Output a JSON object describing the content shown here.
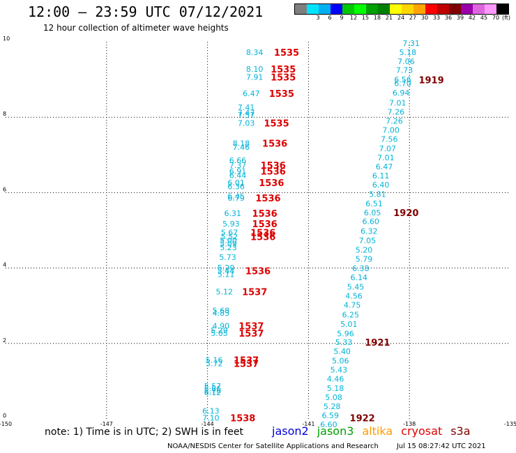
{
  "header": {
    "title": "12:00 – 23:59 UTC 07/12/2021",
    "subtitle": "12 hour collection of altimeter wave heights"
  },
  "colorbar": {
    "unit_label": "(ft)",
    "swatches": [
      {
        "color": "#7f7f7f",
        "label": ""
      },
      {
        "color": "#00e5ff",
        "label": "3"
      },
      {
        "color": "#00b0f0",
        "label": "6"
      },
      {
        "color": "#0000ff",
        "label": "9"
      },
      {
        "color": "#00c800",
        "label": "12"
      },
      {
        "color": "#00ff00",
        "label": "15"
      },
      {
        "color": "#00a000",
        "label": "18"
      },
      {
        "color": "#008000",
        "label": "21"
      },
      {
        "color": "#ffff00",
        "label": "24"
      },
      {
        "color": "#ffd700",
        "label": "27"
      },
      {
        "color": "#ffa500",
        "label": "30"
      },
      {
        "color": "#ff0000",
        "label": "33"
      },
      {
        "color": "#c00000",
        "label": "36"
      },
      {
        "color": "#800000",
        "label": "39"
      },
      {
        "color": "#9900aa",
        "label": "42"
      },
      {
        "color": "#dd66dd",
        "label": "45"
      },
      {
        "color": "#ff99ff",
        "label": "70"
      },
      {
        "color": "#000000",
        "label": ""
      }
    ]
  },
  "footer": {
    "note": "note:  1) Time is in UTC; 2) SWH is in feet",
    "legend": [
      {
        "name": "jason2",
        "color": "#0000dd"
      },
      {
        "name": "jason3",
        "color": "#00a000"
      },
      {
        "name": "altika",
        "color": "#ff9900"
      },
      {
        "name": "cryosat",
        "color": "#dd0000"
      },
      {
        "name": "s3a",
        "color": "#800000"
      }
    ],
    "credit": "NOAA/NESDIS Center for Satellite Applications and Research",
    "generated": "Jul 15 08:27:42 UTC 2021"
  },
  "chart_data": {
    "type": "scatter",
    "title": "12:00 – 23:59 UTC 07/12/2021",
    "subtitle": "12 hour collection of altimeter wave heights",
    "xlim": [
      -150,
      -135
    ],
    "ylim": [
      0,
      10
    ],
    "x_ticks": [
      -150,
      -147,
      -144,
      -141,
      -138,
      -135
    ],
    "y_ticks": [
      0,
      2,
      4,
      6,
      8,
      10
    ],
    "grid": true,
    "wave_color": "#00b4d8",
    "series": [
      {
        "name": "track west",
        "values": [
          {
            "x": -142.6,
            "y": 9.72,
            "v": "8.34"
          },
          {
            "x": -142.6,
            "y": 9.28,
            "v": "8.10"
          },
          {
            "x": -142.6,
            "y": 9.07,
            "v": "7.91"
          },
          {
            "x": -142.7,
            "y": 8.63,
            "v": "6.47"
          },
          {
            "x": -142.85,
            "y": 8.26,
            "v": "7.41"
          },
          {
            "x": -142.85,
            "y": 8.12,
            "v": "7.47"
          },
          {
            "x": -142.85,
            "y": 8.06,
            "v": "7.57"
          },
          {
            "x": -142.85,
            "y": 7.85,
            "v": "7.03"
          },
          {
            "x": -143.0,
            "y": 7.31,
            "v": "8.18"
          },
          {
            "x": -143.0,
            "y": 7.21,
            "v": "7.46"
          },
          {
            "x": -143.1,
            "y": 6.86,
            "v": "6.66"
          },
          {
            "x": -143.1,
            "y": 6.73,
            "v": "7.37"
          },
          {
            "x": -143.1,
            "y": 6.57,
            "v": "6.91"
          },
          {
            "x": -143.1,
            "y": 6.46,
            "v": "6.44"
          },
          {
            "x": -143.15,
            "y": 6.27,
            "v": "6.01"
          },
          {
            "x": -143.15,
            "y": 6.16,
            "v": "6.36"
          },
          {
            "x": -143.15,
            "y": 5.91,
            "v": "6.45"
          },
          {
            "x": -143.15,
            "y": 5.86,
            "v": "6.79"
          },
          {
            "x": -143.25,
            "y": 5.45,
            "v": "6.31"
          },
          {
            "x": -143.3,
            "y": 5.18,
            "v": "5.93"
          },
          {
            "x": -143.35,
            "y": 4.94,
            "v": "5.67"
          },
          {
            "x": -143.35,
            "y": 4.83,
            "v": "5.52"
          },
          {
            "x": -143.38,
            "y": 4.73,
            "v": "5.00"
          },
          {
            "x": -143.38,
            "y": 4.65,
            "v": "5.09"
          },
          {
            "x": -143.38,
            "y": 4.55,
            "v": "5.23"
          },
          {
            "x": -143.4,
            "y": 4.29,
            "v": "5.73"
          },
          {
            "x": -143.45,
            "y": 4.01,
            "v": "5.20"
          },
          {
            "x": -143.45,
            "y": 3.93,
            "v": "5.44"
          },
          {
            "x": -143.45,
            "y": 3.84,
            "v": "5.11"
          },
          {
            "x": -143.5,
            "y": 3.37,
            "v": "5.12"
          },
          {
            "x": -143.6,
            "y": 2.87,
            "v": "5.68"
          },
          {
            "x": -143.6,
            "y": 2.81,
            "v": "4.83"
          },
          {
            "x": -143.6,
            "y": 2.47,
            "v": "4.90"
          },
          {
            "x": -143.65,
            "y": 2.35,
            "v": "5.29"
          },
          {
            "x": -143.65,
            "y": 2.27,
            "v": "5.05"
          },
          {
            "x": -143.8,
            "y": 1.56,
            "v": "5.16"
          },
          {
            "x": -143.8,
            "y": 1.47,
            "v": "5.72"
          },
          {
            "x": -143.85,
            "y": 0.87,
            "v": "5.57"
          },
          {
            "x": -143.85,
            "y": 0.8,
            "v": "5.86"
          },
          {
            "x": -143.85,
            "y": 0.75,
            "v": "5.76"
          },
          {
            "x": -143.85,
            "y": 0.7,
            "v": "6.12"
          },
          {
            "x": -143.9,
            "y": 0.21,
            "v": "6.13"
          },
          {
            "x": -143.9,
            "y": 0.03,
            "v": "7.10"
          }
        ]
      },
      {
        "name": "track east",
        "values": [
          {
            "x": -137.95,
            "y": 9.96,
            "v": "7.31"
          },
          {
            "x": -138.05,
            "y": 9.72,
            "v": "5.18"
          },
          {
            "x": -138.1,
            "y": 9.48,
            "v": "7.06"
          },
          {
            "x": -138.15,
            "y": 9.25,
            "v": "7.73"
          },
          {
            "x": -138.2,
            "y": 9.0,
            "v": "6.56"
          },
          {
            "x": -138.2,
            "y": 8.9,
            "v": "6.70"
          },
          {
            "x": -138.25,
            "y": 8.65,
            "v": "6.94"
          },
          {
            "x": -138.35,
            "y": 8.38,
            "v": "7.01"
          },
          {
            "x": -138.4,
            "y": 8.14,
            "v": "7.26"
          },
          {
            "x": -138.45,
            "y": 7.9,
            "v": "7.26"
          },
          {
            "x": -138.55,
            "y": 7.66,
            "v": "7.00"
          },
          {
            "x": -138.6,
            "y": 7.42,
            "v": "7.56"
          },
          {
            "x": -138.65,
            "y": 7.17,
            "v": "7.07"
          },
          {
            "x": -138.7,
            "y": 6.93,
            "v": "7.01"
          },
          {
            "x": -138.75,
            "y": 6.69,
            "v": "6.47"
          },
          {
            "x": -138.85,
            "y": 6.45,
            "v": "6.11"
          },
          {
            "x": -138.85,
            "y": 6.21,
            "v": "6.40"
          },
          {
            "x": -138.95,
            "y": 5.96,
            "v": "5.81"
          },
          {
            "x": -139.05,
            "y": 5.71,
            "v": "6.51"
          },
          {
            "x": -139.1,
            "y": 5.47,
            "v": "6.05"
          },
          {
            "x": -139.15,
            "y": 5.24,
            "v": "6.60"
          },
          {
            "x": -139.2,
            "y": 4.98,
            "v": "6.32"
          },
          {
            "x": -139.25,
            "y": 4.73,
            "v": "7.05"
          },
          {
            "x": -139.35,
            "y": 4.48,
            "v": "5.20"
          },
          {
            "x": -139.35,
            "y": 4.24,
            "v": "5.79"
          },
          {
            "x": -139.45,
            "y": 3.99,
            "v": "6.38"
          },
          {
            "x": -139.5,
            "y": 3.75,
            "v": "6.14"
          },
          {
            "x": -139.6,
            "y": 3.5,
            "v": "5.45"
          },
          {
            "x": -139.65,
            "y": 3.26,
            "v": "4.56"
          },
          {
            "x": -139.7,
            "y": 3.02,
            "v": "4.75"
          },
          {
            "x": -139.75,
            "y": 2.76,
            "v": "6.25"
          },
          {
            "x": -139.8,
            "y": 2.51,
            "v": "5.01"
          },
          {
            "x": -139.9,
            "y": 2.26,
            "v": "5.96"
          },
          {
            "x": -139.95,
            "y": 2.03,
            "v": "5.33"
          },
          {
            "x": -140.0,
            "y": 1.79,
            "v": "5.40"
          },
          {
            "x": -140.05,
            "y": 1.54,
            "v": "5.06"
          },
          {
            "x": -140.1,
            "y": 1.3,
            "v": "5.43"
          },
          {
            "x": -140.2,
            "y": 1.06,
            "v": "4.46"
          },
          {
            "x": -140.2,
            "y": 0.81,
            "v": "5.18"
          },
          {
            "x": -140.25,
            "y": 0.57,
            "v": "5.08"
          },
          {
            "x": -140.3,
            "y": 0.33,
            "v": "5.28"
          },
          {
            "x": -140.35,
            "y": 0.09,
            "v": "6.59"
          },
          {
            "x": -140.4,
            "y": -0.15,
            "v": "6.60"
          }
        ]
      }
    ],
    "annotations": [
      {
        "x": -141.65,
        "y": 9.72,
        "text": "1535",
        "color": "#dd0000"
      },
      {
        "x": -141.75,
        "y": 9.28,
        "text": "1535",
        "color": "#dd0000"
      },
      {
        "x": -141.75,
        "y": 9.07,
        "text": "1535",
        "color": "#dd0000"
      },
      {
        "x": -141.8,
        "y": 8.63,
        "text": "1535",
        "color": "#dd0000"
      },
      {
        "x": -141.95,
        "y": 7.85,
        "text": "1535",
        "color": "#dd0000"
      },
      {
        "x": -142.0,
        "y": 7.31,
        "text": "1536",
        "color": "#dd0000"
      },
      {
        "x": -142.05,
        "y": 6.73,
        "text": "1536",
        "color": "#dd0000"
      },
      {
        "x": -142.05,
        "y": 6.57,
        "text": "1536",
        "color": "#dd0000"
      },
      {
        "x": -142.1,
        "y": 6.27,
        "text": "1536",
        "color": "#dd0000"
      },
      {
        "x": -142.2,
        "y": 5.86,
        "text": "1536",
        "color": "#dd0000"
      },
      {
        "x": -142.3,
        "y": 5.45,
        "text": "1536",
        "color": "#dd0000"
      },
      {
        "x": -142.3,
        "y": 5.18,
        "text": "1536",
        "color": "#dd0000"
      },
      {
        "x": -142.35,
        "y": 4.94,
        "text": "1536",
        "color": "#dd0000"
      },
      {
        "x": -142.35,
        "y": 4.83,
        "text": "1536",
        "color": "#dd0000"
      },
      {
        "x": -142.5,
        "y": 3.93,
        "text": "1536",
        "color": "#dd0000"
      },
      {
        "x": -142.6,
        "y": 3.37,
        "text": "1537",
        "color": "#dd0000"
      },
      {
        "x": -142.7,
        "y": 2.47,
        "text": "1537",
        "color": "#dd0000"
      },
      {
        "x": -142.7,
        "y": 2.27,
        "text": "1537",
        "color": "#dd0000"
      },
      {
        "x": -142.85,
        "y": 1.56,
        "text": "1537",
        "color": "#dd0000"
      },
      {
        "x": -142.85,
        "y": 1.47,
        "text": "1537",
        "color": "#dd0000"
      },
      {
        "x": -142.95,
        "y": 0.03,
        "text": "1538",
        "color": "#dd0000"
      },
      {
        "x": -137.35,
        "y": 8.99,
        "text": "1919",
        "color": "#800000"
      },
      {
        "x": -138.1,
        "y": 5.47,
        "text": "1920",
        "color": "#800000"
      },
      {
        "x": -138.95,
        "y": 2.03,
        "text": "1921",
        "color": "#800000"
      },
      {
        "x": -139.4,
        "y": 0.03,
        "text": "1922",
        "color": "#800000"
      }
    ]
  }
}
